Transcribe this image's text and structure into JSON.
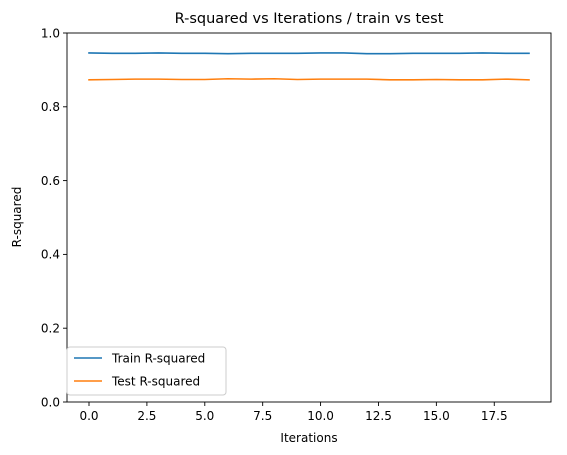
{
  "chart_data": {
    "type": "line",
    "title": "R-squared vs Iterations / train vs test",
    "xlabel": "Iterations",
    "ylabel": "R-squared",
    "xlim": [
      -0.95,
      19.95
    ],
    "ylim": [
      0.0,
      1.0
    ],
    "x_ticks": [
      0.0,
      2.5,
      5.0,
      7.5,
      10.0,
      12.5,
      15.0,
      17.5
    ],
    "x_tick_labels": [
      "0.0",
      "2.5",
      "5.0",
      "7.5",
      "10.0",
      "12.5",
      "15.0",
      "17.5"
    ],
    "y_ticks": [
      0.0,
      0.2,
      0.4,
      0.6,
      0.8,
      1.0
    ],
    "y_tick_labels": [
      "0.0",
      "0.2",
      "0.4",
      "0.6",
      "0.8",
      "1.0"
    ],
    "grid": false,
    "legend_position": "lower-left",
    "x": [
      0,
      1,
      2,
      3,
      4,
      5,
      6,
      7,
      8,
      9,
      10,
      11,
      12,
      13,
      14,
      15,
      16,
      17,
      18,
      19
    ],
    "series": [
      {
        "name": "Train R-squared",
        "color": "#1f77b4",
        "values": [
          0.946,
          0.945,
          0.945,
          0.946,
          0.945,
          0.945,
          0.944,
          0.945,
          0.945,
          0.945,
          0.946,
          0.946,
          0.944,
          0.944,
          0.945,
          0.945,
          0.945,
          0.946,
          0.945,
          0.945
        ]
      },
      {
        "name": "Test R-squared",
        "color": "#ff7f0e",
        "values": [
          0.873,
          0.874,
          0.875,
          0.875,
          0.874,
          0.874,
          0.876,
          0.875,
          0.876,
          0.874,
          0.875,
          0.875,
          0.875,
          0.873,
          0.873,
          0.874,
          0.873,
          0.873,
          0.875,
          0.873
        ]
      }
    ]
  }
}
